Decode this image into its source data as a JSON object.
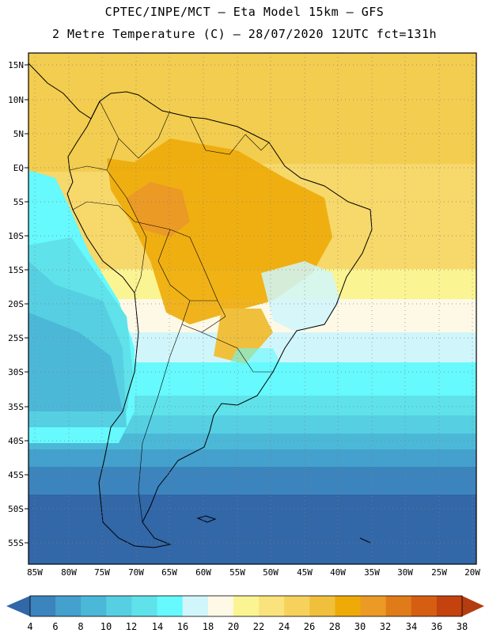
{
  "header": {
    "line1": "CPTEC/INPE/MCT –  Eta Model 15km – GFS",
    "line2": "2 Metre Temperature (C) – 28/07/2020 12UTC fct=131h"
  },
  "map": {
    "region": "South America",
    "lat_labels": [
      "15N",
      "10N",
      "5N",
      "EQ",
      "5S",
      "10S",
      "15S",
      "20S",
      "25S",
      "30S",
      "35S",
      "40S",
      "45S",
      "50S",
      "55S"
    ],
    "lon_labels": [
      "85W",
      "80W",
      "75W",
      "70W",
      "65W",
      "60W",
      "55W",
      "50W",
      "45W",
      "40W",
      "35W",
      "30W",
      "25W",
      "20W"
    ]
  },
  "colorbar": {
    "ticks": [
      "4",
      "6",
      "8",
      "10",
      "12",
      "14",
      "16",
      "18",
      "20",
      "22",
      "24",
      "26",
      "28",
      "30",
      "32",
      "34",
      "36",
      "38"
    ],
    "colors": [
      "#3267a8",
      "#3c84bd",
      "#44a0cc",
      "#4cb8d8",
      "#56cfe2",
      "#5fe2ea",
      "#66f9fd",
      "#d0f6fb",
      "#fdf9e6",
      "#fbf493",
      "#fae37c",
      "#f6d25c",
      "#f0c03c",
      "#eeab08",
      "#eb9a25",
      "#e07b19",
      "#d55e13",
      "#c4420d",
      "#b33d10"
    ]
  }
}
